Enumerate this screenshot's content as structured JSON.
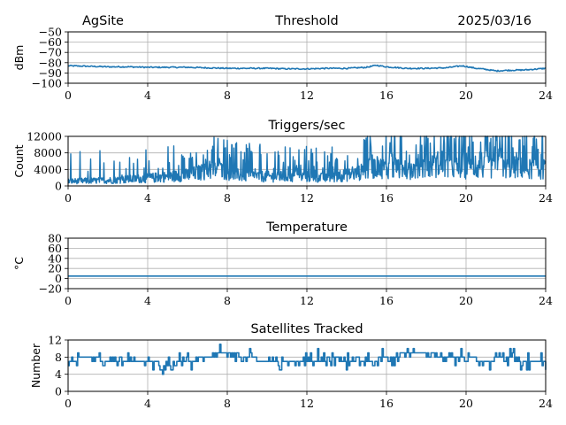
{
  "header": {
    "site": "AgSite",
    "date": "2025/03/16"
  },
  "line_color": "#1f77b4",
  "chart_data": [
    {
      "type": "line",
      "title": "Threshold",
      "ylabel": "dBm",
      "xlim": [
        0,
        24
      ],
      "ylim": [
        -100,
        -50
      ],
      "xticks": [
        0,
        4,
        8,
        12,
        16,
        20,
        24
      ],
      "yticks": [
        -100,
        -90,
        -80,
        -70,
        -60,
        -50
      ],
      "ytick_labels": [
        "−100",
        "−90",
        "−80",
        "−70",
        "−60",
        "−50"
      ],
      "grid": true,
      "series": [
        {
          "x": [
            0,
            1,
            2,
            3,
            4,
            5,
            6,
            7,
            8,
            9,
            10,
            11,
            12,
            13,
            14,
            15,
            15.5,
            16,
            17,
            18,
            19,
            19.8,
            20.5,
            21,
            21.5,
            22,
            23,
            24
          ],
          "values": [
            -83,
            -83.5,
            -84,
            -84,
            -84.5,
            -84.5,
            -84.5,
            -85,
            -85.5,
            -85.5,
            -85.5,
            -86,
            -86,
            -85.5,
            -85.5,
            -84.5,
            -82.5,
            -84,
            -85.5,
            -85.5,
            -85,
            -83,
            -85.5,
            -86.5,
            -88,
            -87.5,
            -87,
            -85.5
          ]
        }
      ]
    },
    {
      "type": "line",
      "title": "Triggers/sec",
      "ylabel": "Count",
      "xlim": [
        0,
        24
      ],
      "ylim": [
        0,
        12000
      ],
      "xticks": [
        0,
        4,
        8,
        12,
        16,
        20,
        24
      ],
      "yticks": [
        0,
        4000,
        8000,
        12000
      ],
      "ytick_labels": [
        "0",
        "4000",
        "8000",
        "12000"
      ],
      "grid": true,
      "series": [
        {
          "x": [
            0,
            2,
            4,
            6,
            7.5,
            8.5,
            10,
            12,
            13,
            14.5,
            15.5,
            17,
            18.5,
            20,
            21,
            22.5,
            24
          ],
          "values": [
            1500,
            1800,
            2500,
            3500,
            5500,
            3500,
            3000,
            3000,
            2500,
            4000,
            6000,
            5000,
            6500,
            5500,
            6000,
            6000,
            5000
          ]
        }
      ]
    },
    {
      "type": "line",
      "title": "Temperature",
      "ylabel": "°C",
      "xlim": [
        0,
        24
      ],
      "ylim": [
        -20,
        80
      ],
      "xticks": [
        0,
        4,
        8,
        12,
        16,
        20,
        24
      ],
      "yticks": [
        -20,
        0,
        20,
        40,
        60,
        80
      ],
      "ytick_labels": [
        "−20",
        "0",
        "20",
        "40",
        "60",
        "80"
      ],
      "grid": true,
      "series": [
        {
          "x": [
            0,
            24
          ],
          "values": [
            5,
            5
          ]
        }
      ]
    },
    {
      "type": "line",
      "title": "Satellites Tracked",
      "ylabel": "Number",
      "xlim": [
        0,
        24
      ],
      "ylim": [
        0,
        12
      ],
      "xticks": [
        0,
        4,
        8,
        12,
        16,
        20,
        24
      ],
      "yticks": [
        0,
        4,
        8,
        12
      ],
      "ytick_labels": [
        "0",
        "4",
        "8",
        "12"
      ],
      "grid": true,
      "series": [
        {
          "x": [
            0,
            1,
            2,
            3,
            4,
            5,
            6,
            7,
            8,
            9,
            10,
            11,
            12,
            13,
            14,
            15,
            16,
            17,
            18,
            19,
            20,
            21,
            22,
            23,
            24
          ],
          "values": [
            7,
            8,
            7,
            7,
            7,
            6,
            7,
            8,
            9,
            8,
            7,
            7,
            7,
            8,
            7,
            7,
            8,
            9,
            9,
            8,
            8,
            7,
            8,
            7,
            7
          ]
        }
      ]
    }
  ]
}
